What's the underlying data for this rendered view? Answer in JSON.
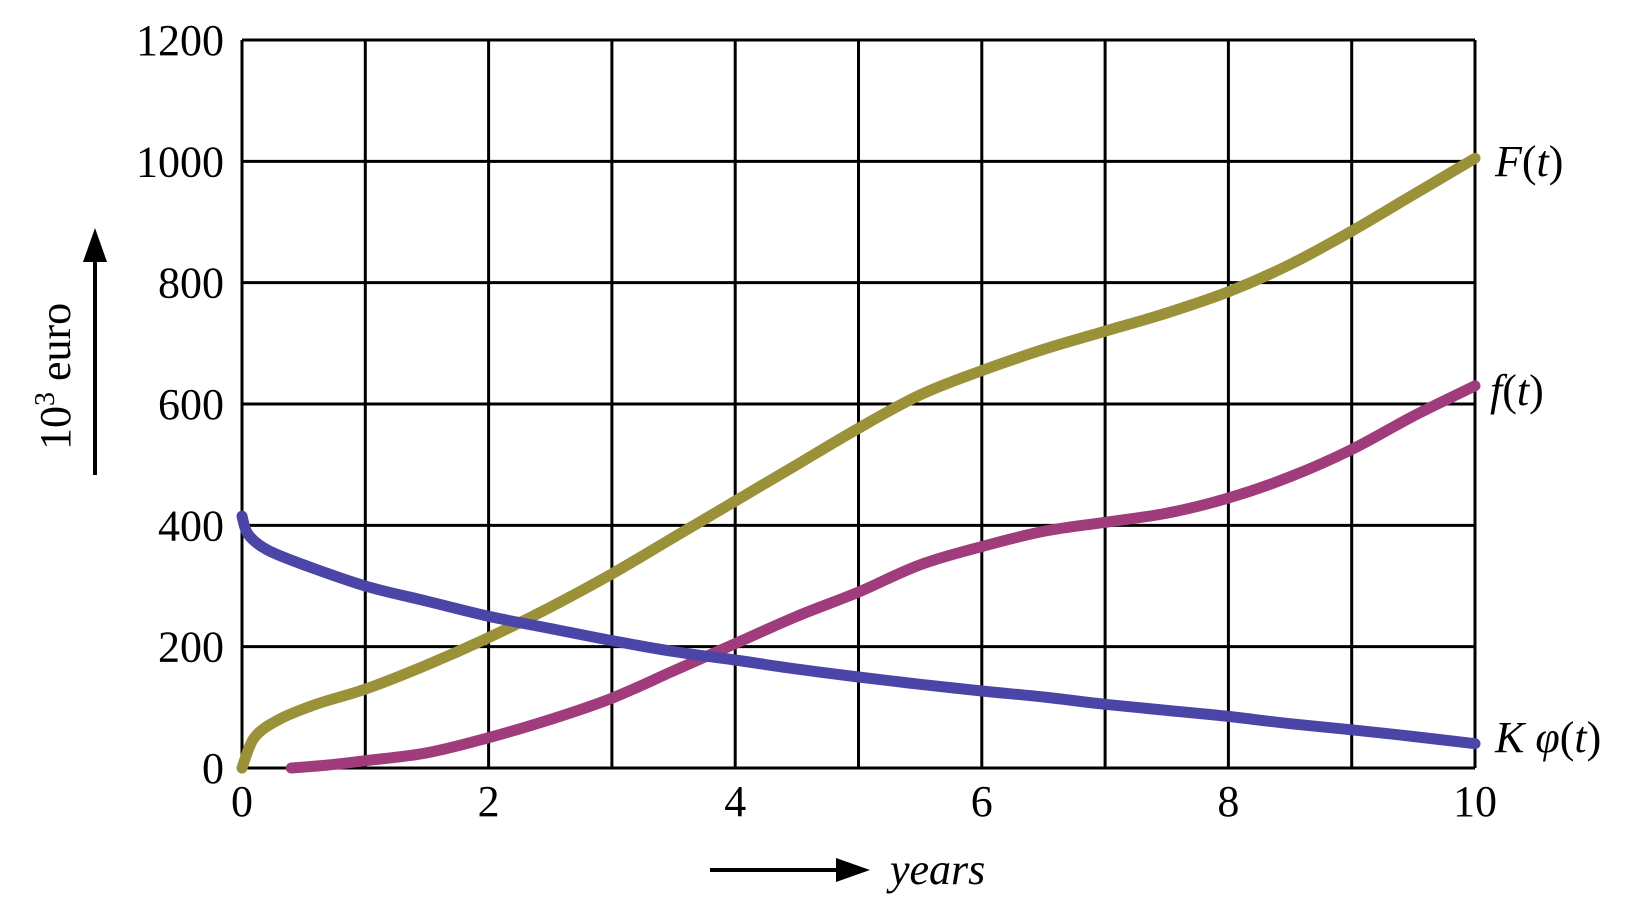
{
  "chart_data": {
    "type": "line",
    "xlabel": "years",
    "ylabel": {
      "base": "10",
      "exponent": "3",
      "unit": " euro"
    },
    "xlim": [
      0,
      10
    ],
    "ylim": [
      0,
      1200
    ],
    "xticks": [
      "0",
      "2",
      "4",
      "6",
      "8",
      "10"
    ],
    "yticks": [
      "0",
      "200",
      "400",
      "600",
      "800",
      "1000",
      "1200"
    ],
    "grid": true,
    "series": [
      {
        "key": "F",
        "name": "F(t)",
        "label_parts": [
          "F",
          "(",
          "t",
          ")"
        ],
        "color": "#9b9139",
        "x": [
          0,
          0.1,
          0.3,
          0.6,
          1,
          1.5,
          2,
          2.5,
          3,
          3.5,
          4,
          4.5,
          5,
          5.5,
          6,
          6.5,
          7,
          7.5,
          8,
          8.5,
          9,
          9.5,
          10
        ],
        "y": [
          0,
          50,
          80,
          105,
          130,
          170,
          215,
          265,
          320,
          380,
          440,
          500,
          560,
          615,
          655,
          690,
          720,
          750,
          785,
          830,
          885,
          945,
          1005
        ]
      },
      {
        "key": "f",
        "name": "f(t)",
        "label_parts": [
          "f",
          "(",
          "t",
          ")"
        ],
        "color": "#a13c7c",
        "x": [
          0.4,
          0.7,
          1,
          1.5,
          2,
          2.5,
          3,
          3.5,
          4,
          4.5,
          5,
          5.5,
          6,
          6.5,
          7,
          7.5,
          8,
          8.5,
          9,
          9.5,
          10
        ],
        "y": [
          0,
          5,
          12,
          25,
          50,
          80,
          115,
          160,
          205,
          250,
          290,
          335,
          365,
          390,
          405,
          420,
          445,
          480,
          525,
          580,
          630
        ]
      },
      {
        "key": "Kphi",
        "name": "K φ(t)",
        "label_parts": [
          "K φ",
          "(",
          "t",
          ")"
        ],
        "color": "#4b45a8",
        "x": [
          0,
          0.05,
          0.2,
          0.5,
          1,
          1.5,
          2,
          2.5,
          3,
          3.5,
          4,
          4.5,
          5,
          5.5,
          6,
          6.5,
          7,
          7.5,
          8,
          8.5,
          9,
          9.5,
          10
        ],
        "y": [
          415,
          385,
          360,
          335,
          300,
          275,
          250,
          230,
          210,
          192,
          178,
          163,
          150,
          138,
          127,
          117,
          105,
          95,
          85,
          73,
          63,
          52,
          40
        ]
      }
    ]
  }
}
